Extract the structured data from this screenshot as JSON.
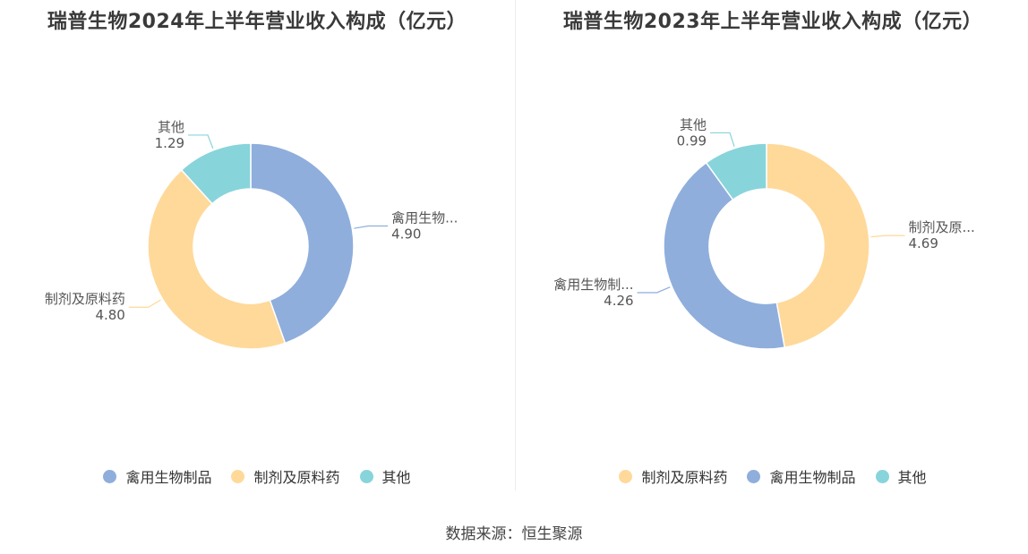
{
  "source": "数据来源：恒生聚源",
  "chart_data": [
    {
      "type": "pie",
      "donut": true,
      "title": "瑞普生物2024年上半年营业收入构成（亿元）",
      "slices": [
        {
          "name": "禽用生物制品",
          "value": 4.9,
          "label_name": "禽用生物...",
          "label_value": "4.90",
          "color": "#8FAEDC"
        },
        {
          "name": "制剂及原料药",
          "value": 4.8,
          "label_name": "制剂及原料药",
          "label_value": "4.80",
          "color": "#FFD99A"
        },
        {
          "name": "其他",
          "value": 1.29,
          "label_name": "其他",
          "label_value": "1.29",
          "color": "#88D4DB"
        }
      ],
      "legend": [
        "禽用生物制品",
        "制剂及原料药",
        "其他"
      ],
      "legend_position": "bottom"
    },
    {
      "type": "pie",
      "donut": true,
      "title": "瑞普生物2023年上半年营业收入构成（亿元）",
      "slices": [
        {
          "name": "制剂及原料药",
          "value": 4.69,
          "label_name": "制剂及原...",
          "label_value": "4.69",
          "color": "#FFD99A"
        },
        {
          "name": "禽用生物制品",
          "value": 4.26,
          "label_name": "禽用生物制...",
          "label_value": "4.26",
          "color": "#8FAEDC"
        },
        {
          "name": "其他",
          "value": 0.99,
          "label_name": "其他",
          "label_value": "0.99",
          "color": "#88D4DB"
        }
      ],
      "legend": [
        "制剂及原料药",
        "禽用生物制品",
        "其他"
      ],
      "legend_position": "bottom"
    }
  ]
}
